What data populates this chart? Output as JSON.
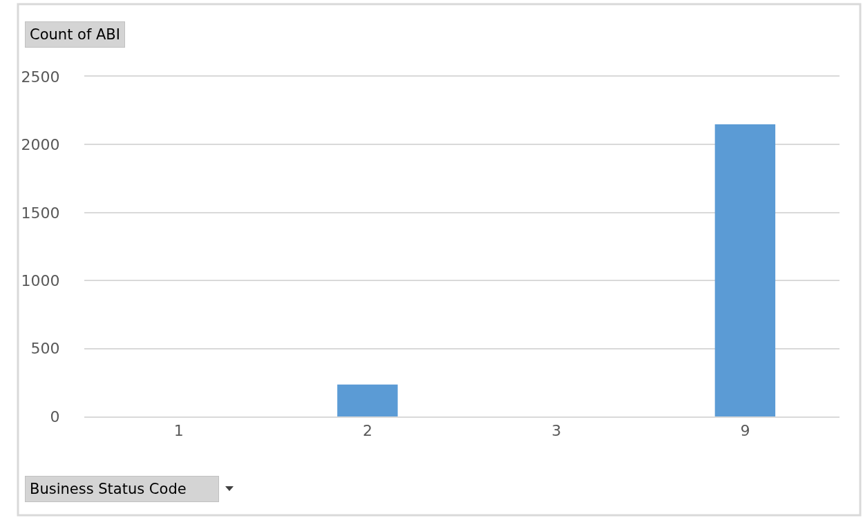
{
  "chart_data": {
    "type": "bar",
    "ylabel": "Count of ABI",
    "xlabel": "Business Status Code",
    "categories": [
      "1",
      "2",
      "3",
      "9"
    ],
    "values": [
      0,
      235,
      0,
      2150
    ],
    "color": "#5b9bd5",
    "ylim": [
      0,
      2500
    ],
    "yticks": [
      0,
      500,
      1000,
      1500,
      2000,
      2500
    ],
    "grid": "y",
    "legend": false
  }
}
